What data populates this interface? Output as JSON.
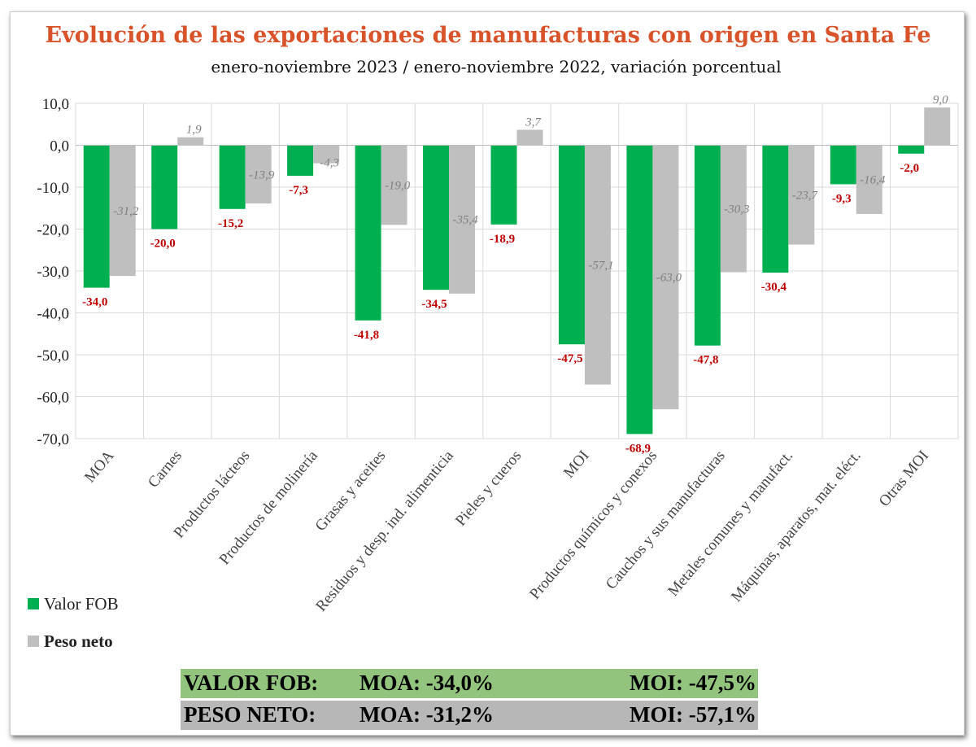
{
  "title": "Evolución de las exportaciones de manufacturas con origen en Santa Fe",
  "subtitle": "enero-noviembre 2023 /  enero-noviembre  2022, variación porcentual",
  "chart_data": {
    "type": "bar",
    "title": "Evolución de las exportaciones de manufacturas con origen en Santa Fe",
    "subtitle": "enero-noviembre 2023 /  enero-noviembre  2022, variación porcentual",
    "categories": [
      "MOA",
      "Carnes",
      "Productos lácteos",
      "Productos de molinería",
      "Grasas y aceites",
      "Residuos y desp. ind. alimenticia",
      "Pieles y cueros",
      "MOI",
      "Productos químicos y conexos",
      "Cauchos y sus manufacturas",
      "Metales comunes y manufact.",
      "Máquinas, aparatos, mat. eléct.",
      "Otras MOI"
    ],
    "series": [
      {
        "name": "Valor FOB",
        "color": "#00b050",
        "labels": [
          "-34,0",
          "-20,0",
          "-15,2",
          "-7,3",
          "-41,8",
          "-34,5",
          "-18,9",
          "-47,5",
          "-68,9",
          "-47,8",
          "-30,4",
          "-9,3",
          "-2,0"
        ],
        "values": [
          -34.0,
          -20.0,
          -15.2,
          -7.3,
          -41.8,
          -34.5,
          -18.9,
          -47.5,
          -68.9,
          -47.8,
          -30.4,
          -9.3,
          -2.0
        ]
      },
      {
        "name": "Peso neto",
        "color": "#bfbfbf",
        "labels": [
          "-31,2",
          "1,9",
          "-13,9",
          "-4,3",
          "-19,0",
          "-35,4",
          "3,7",
          "-57,1",
          "-63,0",
          "-30,3",
          "-23,7",
          "-16,4",
          "9,0"
        ],
        "values": [
          -31.2,
          1.9,
          -13.9,
          -4.3,
          -19.0,
          -35.4,
          3.7,
          -57.1,
          -63.0,
          -30.3,
          -23.7,
          -16.4,
          9.0
        ]
      }
    ],
    "ylim": [
      -70,
      10
    ],
    "yticks": [
      "10,0",
      "0,0",
      "-10,0",
      "-20,0",
      "-30,0",
      "-40,0",
      "-50,0",
      "-60,0",
      "-70,0"
    ],
    "grid": true,
    "legend": "bottom-left",
    "label_colors": {
      "Valor FOB": "#c00000",
      "Peso neto": "#7f7f7f"
    }
  },
  "summary": [
    {
      "label": "VALOR FOB:",
      "moa": "MOA: -34,0%",
      "moi": "MOI: -47,5%",
      "color": "#92c47d"
    },
    {
      "label": "PESO NETO:",
      "moa": "MOA: -31,2%",
      "moi": "MOI: -57,1%",
      "color": "#b7b7b7"
    }
  ]
}
